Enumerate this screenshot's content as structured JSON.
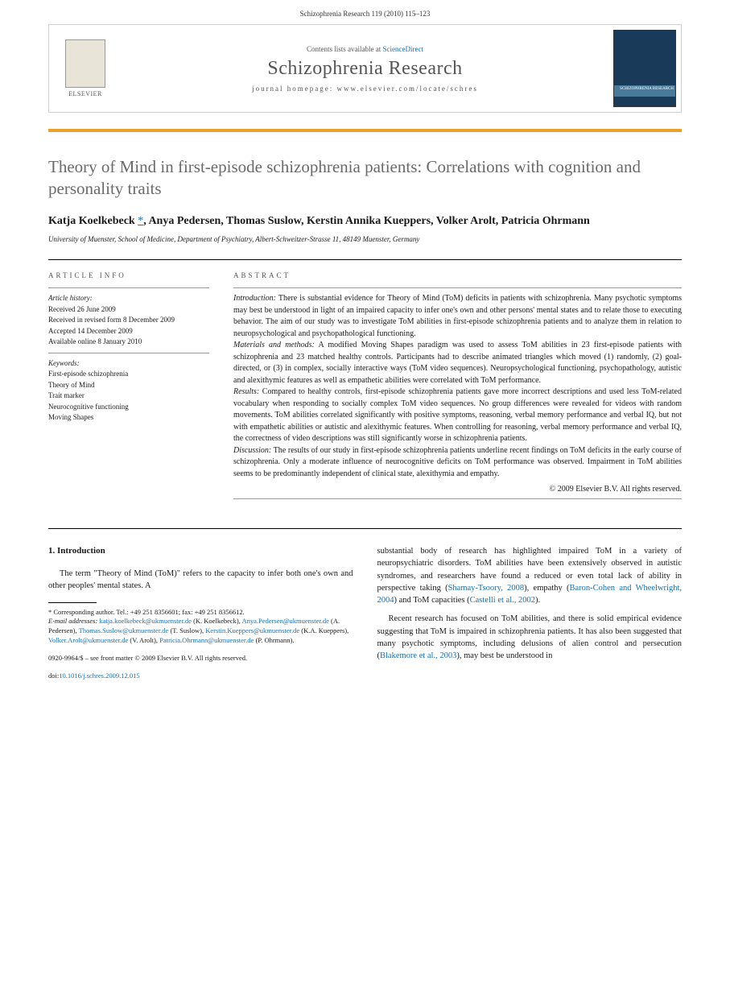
{
  "header": {
    "citation": "Schizophrenia Research 119 (2010) 115–123"
  },
  "journalBox": {
    "elsevier": "ELSEVIER",
    "contentsPrefix": "Contents lists available at ",
    "contentsLink": "ScienceDirect",
    "journalName": "Schizophrenia Research",
    "homepagePrefix": "journal homepage: ",
    "homepageUrl": "www.elsevier.com/locate/schres",
    "coverLabel": "SCHIZOPHRENIA RESEARCH"
  },
  "title": "Theory of Mind in first-episode schizophrenia patients: Correlations with cognition and personality traits",
  "authors": "Katja Koelkebeck *, Anya Pedersen, Thomas Suslow, Kerstin Annika Kueppers, Volker Arolt, Patricia Ohrmann",
  "affiliation": "University of Muenster, School of Medicine, Department of Psychiatry, Albert-Schweitzer-Strasse 11, 48149 Muenster, Germany",
  "articleInfo": {
    "heading": "ARTICLE INFO",
    "historyLabel": "Article history:",
    "received": "Received 26 June 2009",
    "revised": "Received in revised form 8 December 2009",
    "accepted": "Accepted 14 December 2009",
    "online": "Available online 8 January 2010",
    "keywordsLabel": "Keywords:",
    "keywords": [
      "First-episode schizophrenia",
      "Theory of Mind",
      "Trait marker",
      "Neurocognitive functioning",
      "Moving Shapes"
    ]
  },
  "abstract": {
    "heading": "ABSTRACT",
    "intro": "Introduction:",
    "introText": " There is substantial evidence for Theory of Mind (ToM) deficits in patients with schizophrenia. Many psychotic symptoms may best be understood in light of an impaired capacity to infer one's own and other persons' mental states and to relate those to executing behavior. The aim of our study was to investigate ToM abilities in first-episode schizophrenia patients and to analyze them in relation to neuropsychological and psychopathological functioning.",
    "methods": "Materials and methods:",
    "methodsText": " A modified Moving Shapes paradigm was used to assess ToM abilities in 23 first-episode patients with schizophrenia and 23 matched healthy controls. Participants had to describe animated triangles which moved (1) randomly, (2) goal-directed, or (3) in complex, socially interactive ways (ToM video sequences). Neuropsychological functioning, psychopathology, autistic and alexithymic features as well as empathetic abilities were correlated with ToM performance.",
    "results": "Results:",
    "resultsText": " Compared to healthy controls, first-episode schizophrenia patients gave more incorrect descriptions and used less ToM-related vocabulary when responding to socially complex ToM video sequences. No group differences were revealed for videos with random movements. ToM abilities correlated significantly with positive symptoms, reasoning, verbal memory performance and verbal IQ, but not with empathetic abilities or autistic and alexithymic features. When controlling for reasoning, verbal memory performance and verbal IQ, the correctness of video descriptions was still significantly worse in schizophrenia patients.",
    "discussion": "Discussion:",
    "discussionText": " The results of our study in first-episode schizophrenia patients underline recent findings on ToM deficits in the early course of schizophrenia. Only a moderate influence of neurocognitive deficits on ToM performance was observed. Impairment in ToM abilities seems to be predominantly independent of clinical state, alexithymia and empathy.",
    "copyright": "© 2009 Elsevier B.V. All rights reserved."
  },
  "body": {
    "introHeading": "1. Introduction",
    "para1": "The term \"Theory of Mind (ToM)\" refers to the capacity to infer both one's own and other peoples' mental states. A",
    "para2a": "substantial body of research has highlighted impaired ToM in a variety of neuropsychiatric disorders. ToM abilities have been extensively observed in autistic syndromes, and researchers have found a reduced or even total lack of ability in perspective taking (",
    "ref1": "Shamay-Tsoory, 2008",
    "para2b": "), empathy (",
    "ref2": "Baron-Cohen and Wheelwright, 2004",
    "para2c": ") and ToM capacities (",
    "ref3": "Castelli et al., 2002",
    "para2d": ").",
    "para3a": "Recent research has focused on ToM abilities, and there is solid empirical evidence suggesting that ToM is impaired in schizophrenia patients. It has also been suggested that many psychotic symptoms, including delusions of alien control and persecution (",
    "ref4": "Blakemore et al., 2003",
    "para3b": "), may best be understood in"
  },
  "footnotes": {
    "corr": "* Corresponding author. Tel.: +49 251 8356601; fax: +49 251 8356612.",
    "emailLabel": "E-mail addresses:",
    "emails": [
      {
        "addr": "katja.koelkebeck@ukmuenster.de",
        "name": "(K. Koelkebeck),"
      },
      {
        "addr": "Anya.Pedersen@ukmuenster.de",
        "name": "(A. Pedersen),"
      },
      {
        "addr": "Thomas.Suslow@ukmuenster.de",
        "name": "(T. Suslow),"
      },
      {
        "addr": "Kerstin.Kueppers@ukmuenster.de",
        "name": "(K.A. Kueppers),"
      },
      {
        "addr": "Volker.Arolt@ukmuenster.de",
        "name": "(V. Arolt),"
      },
      {
        "addr": "Patricia.Ohrmann@ukmuenster.de",
        "name": "(P. Ohrmann)."
      }
    ]
  },
  "footer": {
    "issn": "0920-9964/$ – see front matter © 2009 Elsevier B.V. All rights reserved.",
    "doiLabel": "doi:",
    "doi": "10.1016/j.schres.2009.12.015"
  }
}
